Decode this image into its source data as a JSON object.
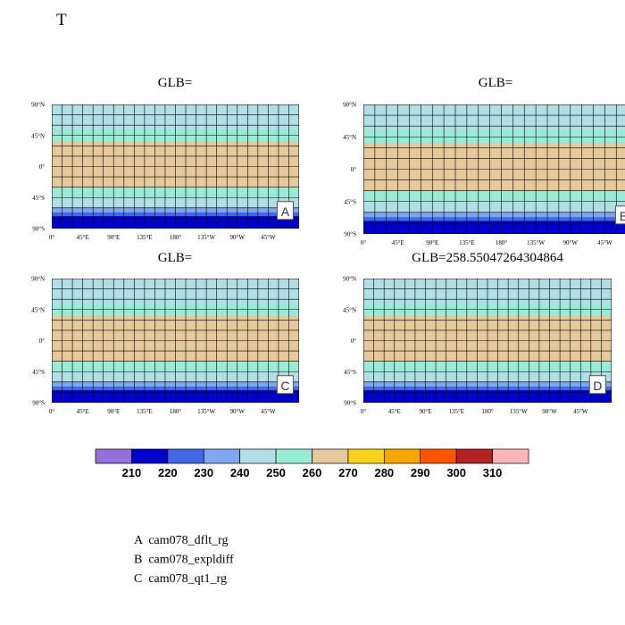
{
  "title": "T",
  "panels": [
    {
      "title": "GLB=",
      "label": "A"
    },
    {
      "title": "GLB=",
      "label": "B"
    },
    {
      "title": "GLB=",
      "label": "C"
    },
    {
      "title": "GLB=258.55047264304864",
      "label": "D"
    }
  ],
  "lat_labels": [
    "90°N",
    "45°N",
    "0°",
    "45°S",
    "90°S"
  ],
  "lon_labels": [
    "0°",
    "45°E",
    "90°E",
    "135°E",
    "180°",
    "135°W",
    "90°W",
    "45°W"
  ],
  "colorbar": {
    "colors": [
      "#9370db",
      "#0000cd",
      "#4169e1",
      "#7fa6ee",
      "#b0e0e6",
      "#98ecd6",
      "#e6c99a",
      "#f8d21c",
      "#f6a800",
      "#ff5500",
      "#b22222",
      "#ffb6b6"
    ],
    "labels": [
      210,
      220,
      230,
      240,
      250,
      260,
      270,
      280,
      290,
      300,
      310
    ]
  },
  "legend": [
    "A  cam078_dflt_rg",
    "B  cam078_expldiff",
    "C  cam078_qt1_rg"
  ]
}
